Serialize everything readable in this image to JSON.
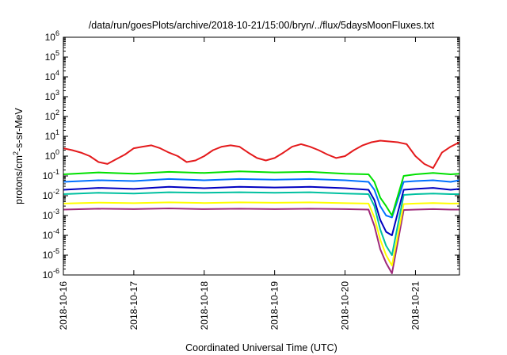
{
  "chart_data": {
    "type": "line",
    "title": "/data/run/goesPlots/archive/2018-10-21/15:00/bryn/../flux/5daysMoonFluxes.txt",
    "xlabel": "Coordinated Universal Time (UTC)",
    "ylabel_base": "protons/cm",
    "ylabel_exp": "2",
    "ylabel_rest": "-s-sr-MeV",
    "yscale": "log",
    "ylim": [
      1e-06,
      1000000.0
    ],
    "xlim": [
      "2018-10-16T00:00",
      "2018-10-21T15:00"
    ],
    "grid": false,
    "legend": "none",
    "x_ticks": [
      "2018-10-16",
      "2018-10-17",
      "2018-10-18",
      "2018-10-19",
      "2018-10-20",
      "2018-10-21"
    ],
    "y_ticks": [
      {
        "value": 1000000.0,
        "base": "10",
        "exp": "6"
      },
      {
        "value": 100000.0,
        "base": "10",
        "exp": "5"
      },
      {
        "value": 10000.0,
        "base": "10",
        "exp": "4"
      },
      {
        "value": 1000.0,
        "base": "10",
        "exp": "3"
      },
      {
        "value": 100.0,
        "base": "10",
        "exp": "2"
      },
      {
        "value": 10.0,
        "base": "10",
        "exp": "1"
      },
      {
        "value": 1.0,
        "base": "10",
        "exp": "0"
      },
      {
        "value": 0.1,
        "base": "10",
        "exp": "-1"
      },
      {
        "value": 0.01,
        "base": "10",
        "exp": "-2"
      },
      {
        "value": 0.001,
        "base": "10",
        "exp": "-3"
      },
      {
        "value": 0.0001,
        "base": "10",
        "exp": "-4"
      },
      {
        "value": 1e-05,
        "base": "10",
        "exp": "-5"
      },
      {
        "value": 1e-06,
        "base": "10",
        "exp": "-6"
      }
    ],
    "series": [
      {
        "color": "#e41a1c",
        "x": [
          "2018-10-16T00:00",
          "2018-10-16T03:00",
          "2018-10-16T06:00",
          "2018-10-16T09:00",
          "2018-10-16T12:00",
          "2018-10-16T15:00",
          "2018-10-16T18:00",
          "2018-10-16T21:00",
          "2018-10-17T00:00",
          "2018-10-17T03:00",
          "2018-10-17T06:00",
          "2018-10-17T09:00",
          "2018-10-17T12:00",
          "2018-10-17T15:00",
          "2018-10-17T18:00",
          "2018-10-17T21:00",
          "2018-10-18T00:00",
          "2018-10-18T03:00",
          "2018-10-18T06:00",
          "2018-10-18T09:00",
          "2018-10-18T12:00",
          "2018-10-18T15:00",
          "2018-10-18T18:00",
          "2018-10-18T21:00",
          "2018-10-19T00:00",
          "2018-10-19T03:00",
          "2018-10-19T06:00",
          "2018-10-19T09:00",
          "2018-10-19T12:00",
          "2018-10-19T15:00",
          "2018-10-19T18:00",
          "2018-10-19T21:00",
          "2018-10-20T00:00",
          "2018-10-20T03:00",
          "2018-10-20T06:00",
          "2018-10-20T09:00",
          "2018-10-20T12:00",
          "2018-10-20T15:00",
          "2018-10-20T18:00",
          "2018-10-20T21:00",
          "2018-10-21T00:00",
          "2018-10-21T03:00",
          "2018-10-21T06:00",
          "2018-10-21T09:00",
          "2018-10-21T12:00",
          "2018-10-21T15:00"
        ],
        "values": [
          2.5,
          2.0,
          1.5,
          1.0,
          0.5,
          0.4,
          0.7,
          1.2,
          2.5,
          3.0,
          3.5,
          2.5,
          1.5,
          1.0,
          0.5,
          0.6,
          1.0,
          2.0,
          3.0,
          3.5,
          3.0,
          1.5,
          0.8,
          0.6,
          0.8,
          1.5,
          3.0,
          4.0,
          3.0,
          2.0,
          1.2,
          0.8,
          1.0,
          2.0,
          3.5,
          5.0,
          6.0,
          5.5,
          5.0,
          4.0,
          1.0,
          0.4,
          0.25,
          1.5,
          3.0,
          5.0
        ]
      },
      {
        "color": "#00e000",
        "x": [
          "2018-10-16T00:00",
          "2018-10-16T12:00",
          "2018-10-17T00:00",
          "2018-10-17T12:00",
          "2018-10-18T00:00",
          "2018-10-18T12:00",
          "2018-10-19T00:00",
          "2018-10-19T12:00",
          "2018-10-20T00:00",
          "2018-10-20T08:00",
          "2018-10-20T10:00",
          "2018-10-20T12:00",
          "2018-10-20T14:00",
          "2018-10-20T16:00",
          "2018-10-20T20:00",
          "2018-10-21T00:00",
          "2018-10-21T06:00",
          "2018-10-21T12:00",
          "2018-10-21T15:00"
        ],
        "values": [
          0.12,
          0.15,
          0.13,
          0.16,
          0.14,
          0.17,
          0.15,
          0.16,
          0.13,
          0.12,
          0.05,
          0.008,
          0.003,
          0.001,
          0.1,
          0.12,
          0.14,
          0.12,
          0.13
        ]
      },
      {
        "color": "#0070ff",
        "x": [
          "2018-10-16T00:00",
          "2018-10-16T12:00",
          "2018-10-17T00:00",
          "2018-10-17T12:00",
          "2018-10-18T00:00",
          "2018-10-18T12:00",
          "2018-10-19T00:00",
          "2018-10-19T12:00",
          "2018-10-20T00:00",
          "2018-10-20T08:00",
          "2018-10-20T10:00",
          "2018-10-20T12:00",
          "2018-10-20T14:00",
          "2018-10-20T16:00",
          "2018-10-20T20:00",
          "2018-10-21T00:00",
          "2018-10-21T06:00",
          "2018-10-21T12:00",
          "2018-10-21T15:00"
        ],
        "values": [
          0.05,
          0.06,
          0.055,
          0.07,
          0.06,
          0.07,
          0.065,
          0.07,
          0.06,
          0.05,
          0.02,
          0.003,
          0.001,
          0.0008,
          0.05,
          0.055,
          0.06,
          0.05,
          0.06
        ]
      },
      {
        "color": "#0000c0",
        "x": [
          "2018-10-16T00:00",
          "2018-10-16T12:00",
          "2018-10-17T00:00",
          "2018-10-17T12:00",
          "2018-10-18T00:00",
          "2018-10-18T12:00",
          "2018-10-19T00:00",
          "2018-10-19T12:00",
          "2018-10-20T00:00",
          "2018-10-20T08:00",
          "2018-10-20T10:00",
          "2018-10-20T12:00",
          "2018-10-20T14:00",
          "2018-10-20T16:00",
          "2018-10-20T20:00",
          "2018-10-21T00:00",
          "2018-10-21T06:00",
          "2018-10-21T12:00",
          "2018-10-21T15:00"
        ],
        "values": [
          0.02,
          0.025,
          0.022,
          0.028,
          0.024,
          0.028,
          0.026,
          0.028,
          0.024,
          0.02,
          0.006,
          0.0006,
          0.00015,
          0.0001,
          0.02,
          0.022,
          0.025,
          0.02,
          0.022
        ]
      },
      {
        "color": "#00c0a0",
        "x": [
          "2018-10-16T00:00",
          "2018-10-16T12:00",
          "2018-10-17T00:00",
          "2018-10-17T12:00",
          "2018-10-18T00:00",
          "2018-10-18T12:00",
          "2018-10-19T00:00",
          "2018-10-19T12:00",
          "2018-10-20T00:00",
          "2018-10-20T08:00",
          "2018-10-20T10:00",
          "2018-10-20T12:00",
          "2018-10-20T14:00",
          "2018-10-20T16:00",
          "2018-10-20T20:00",
          "2018-10-21T00:00",
          "2018-10-21T06:00",
          "2018-10-21T12:00",
          "2018-10-21T15:00"
        ],
        "values": [
          0.012,
          0.014,
          0.013,
          0.015,
          0.014,
          0.015,
          0.014,
          0.015,
          0.013,
          0.012,
          0.003,
          0.0002,
          3e-05,
          1e-05,
          0.011,
          0.012,
          0.013,
          0.012,
          0.012
        ]
      },
      {
        "color": "#ffff00",
        "x": [
          "2018-10-16T00:00",
          "2018-10-16T12:00",
          "2018-10-17T00:00",
          "2018-10-17T12:00",
          "2018-10-18T00:00",
          "2018-10-18T12:00",
          "2018-10-19T00:00",
          "2018-10-19T12:00",
          "2018-10-20T00:00",
          "2018-10-20T08:00",
          "2018-10-20T10:00",
          "2018-10-20T12:00",
          "2018-10-20T14:00",
          "2018-10-20T16:00",
          "2018-10-20T20:00",
          "2018-10-21T00:00",
          "2018-10-21T06:00",
          "2018-10-21T12:00",
          "2018-10-21T15:00"
        ],
        "values": [
          0.004,
          0.0045,
          0.0042,
          0.0046,
          0.0043,
          0.0046,
          0.0044,
          0.0046,
          0.0042,
          0.004,
          0.0008,
          6e-05,
          1e-05,
          3e-06,
          0.0038,
          0.004,
          0.0043,
          0.004,
          0.0041
        ]
      },
      {
        "color": "#9e2a7a",
        "x": [
          "2018-10-16T00:00",
          "2018-10-16T12:00",
          "2018-10-17T00:00",
          "2018-10-17T12:00",
          "2018-10-18T00:00",
          "2018-10-18T12:00",
          "2018-10-19T00:00",
          "2018-10-19T12:00",
          "2018-10-20T00:00",
          "2018-10-20T08:00",
          "2018-10-20T10:00",
          "2018-10-20T12:00",
          "2018-10-20T14:00",
          "2018-10-20T16:00",
          "2018-10-20T20:00",
          "2018-10-21T00:00",
          "2018-10-21T06:00",
          "2018-10-21T12:00",
          "2018-10-21T15:00"
        ],
        "values": [
          0.002,
          0.0022,
          0.0021,
          0.0023,
          0.0021,
          0.0022,
          0.0021,
          0.0022,
          0.0021,
          0.002,
          0.0003,
          2e-05,
          4e-06,
          1.2e-06,
          0.0019,
          0.002,
          0.0021,
          0.002,
          0.002
        ]
      }
    ]
  }
}
